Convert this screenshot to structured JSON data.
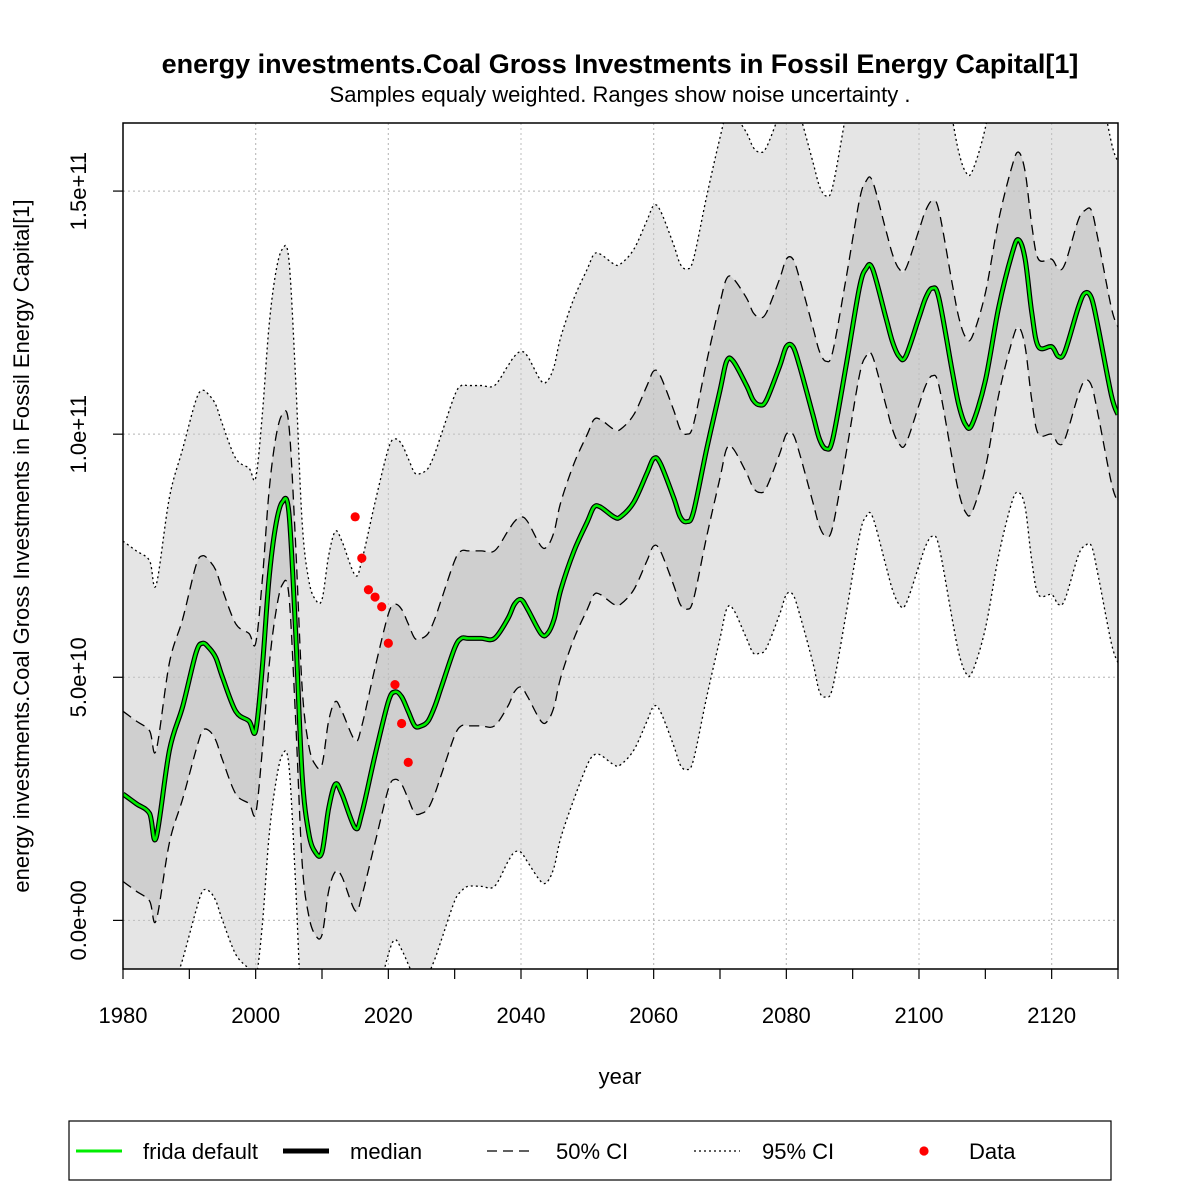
{
  "chart_data": {
    "type": "line",
    "title": "energy investments.Coal Gross Investments in Fossil Energy Capital[1]",
    "subtitle": "Samples equaly weighted. Ranges show  noise uncertainty .",
    "xlabel": "year",
    "ylabel": "energy investments.Coal Gross Investments in Fossil Energy Capital[1]",
    "xlim": [
      1980,
      2130
    ],
    "ylim": [
      -10000000000,
      164000000000
    ],
    "x_ticks": [
      1980,
      2000,
      2020,
      2040,
      2060,
      2080,
      2100,
      2120
    ],
    "x_tick_labels": [
      "1980",
      "2000",
      "2020",
      "2040",
      "2060",
      "2080",
      "2100",
      "2120"
    ],
    "y_ticks": [
      0,
      50000000000,
      100000000000,
      150000000000
    ],
    "y_tick_labels": [
      "0.0e+00",
      "5.0e+10",
      "1.0e+11",
      "1.5e+11"
    ],
    "grid": true,
    "legend_position": "bottom",
    "legend": [
      {
        "label": "frida default",
        "style": "line",
        "color": "#00ee00"
      },
      {
        "label": "median",
        "style": "line",
        "color": "#000000"
      },
      {
        "label": "50% CI",
        "style": "dashed",
        "color": "#000000"
      },
      {
        "label": "95% CI",
        "style": "dotted",
        "color": "#000000"
      },
      {
        "label": "Data",
        "style": "point",
        "color": "#ff0000"
      }
    ],
    "colors": {
      "band95": "#e5e5e5",
      "band50": "#cfcfcf",
      "frida_default": "#00ee00",
      "median": "#000000",
      "data": "#ff0000"
    },
    "x": [
      1980,
      1982,
      1984,
      1985,
      1987,
      1989,
      1991,
      1992,
      1993,
      1994,
      1995,
      1997,
      1999,
      2000,
      2001,
      2002,
      2003,
      2004,
      2005,
      2006,
      2007,
      2008,
      2009,
      2010,
      2011,
      2012,
      2013,
      2015,
      2016,
      2018,
      2020,
      2021,
      2022,
      2023,
      2024,
      2025,
      2026,
      2027,
      2028,
      2030,
      2031,
      2032,
      2034,
      2036,
      2038,
      2039,
      2040,
      2041,
      2043,
      2044,
      2045,
      2046,
      2048,
      2050,
      2051,
      2052,
      2054,
      2055,
      2057,
      2059,
      2060,
      2061,
      2063,
      2064,
      2065,
      2066,
      2068,
      2070,
      2071,
      2072,
      2074,
      2075,
      2076,
      2077,
      2079,
      2080,
      2081,
      2082,
      2084,
      2085,
      2086,
      2087,
      2089,
      2091,
      2092,
      2093,
      2095,
      2096,
      2097,
      2098,
      2100,
      2101,
      2102,
      2103,
      2105,
      2106,
      2107,
      2108,
      2110,
      2112,
      2114,
      2115,
      2116,
      2117,
      2118,
      2120,
      2121,
      2122,
      2124,
      2125,
      2126,
      2127,
      2129,
      2130
    ],
    "series": [
      {
        "name": "frida default",
        "values": [
          26000000000,
          24000000000,
          22000000000,
          17000000000,
          35000000000,
          44000000000,
          55000000000,
          57000000000,
          56000000000,
          54000000000,
          50000000000,
          43000000000,
          41000000000,
          39000000000,
          52000000000,
          70000000000,
          81000000000,
          86000000000,
          84000000000,
          60000000000,
          30000000000,
          18000000000,
          14000000000,
          14000000000,
          23000000000,
          28000000000,
          26000000000,
          19000000000,
          22000000000,
          34000000000,
          45000000000,
          47000000000,
          46000000000,
          43000000000,
          40000000000,
          40000000000,
          41000000000,
          44000000000,
          48000000000,
          56000000000,
          58000000000,
          58000000000,
          58000000000,
          58000000000,
          62000000000,
          65000000000,
          66000000000,
          64000000000,
          59000000000,
          59000000000,
          62000000000,
          68000000000,
          76000000000,
          82000000000,
          85000000000,
          85000000000,
          83000000000,
          83000000000,
          86000000000,
          92000000000,
          95000000000,
          94000000000,
          87000000000,
          83000000000,
          82000000000,
          84000000000,
          97000000000,
          109000000000,
          115000000000,
          115000000000,
          110000000000,
          107000000000,
          106000000000,
          107000000000,
          114000000000,
          118000000000,
          118000000000,
          114000000000,
          104000000000,
          99000000000,
          97000000000,
          99000000000,
          114000000000,
          130000000000,
          134000000000,
          134000000000,
          124000000000,
          119000000000,
          116000000000,
          116000000000,
          124000000000,
          128000000000,
          130000000000,
          128000000000,
          113000000000,
          106000000000,
          102000000000,
          102000000000,
          111000000000,
          126000000000,
          137000000000,
          140000000000,
          136000000000,
          125000000000,
          118000000000,
          118000000000,
          116000000000,
          117000000000,
          126000000000,
          129000000000,
          128000000000,
          122000000000,
          108000000000,
          104000000000
        ]
      },
      {
        "name": "median",
        "values": [
          26000000000,
          24000000000,
          22000000000,
          17000000000,
          35000000000,
          44000000000,
          55000000000,
          57000000000,
          56000000000,
          54000000000,
          50000000000,
          43000000000,
          41000000000,
          39000000000,
          52000000000,
          70000000000,
          81000000000,
          86000000000,
          84000000000,
          60000000000,
          30000000000,
          18000000000,
          14000000000,
          14000000000,
          23000000000,
          28000000000,
          26000000000,
          19000000000,
          22000000000,
          34000000000,
          45000000000,
          47000000000,
          46000000000,
          43000000000,
          40000000000,
          40000000000,
          41000000000,
          44000000000,
          48000000000,
          56000000000,
          58000000000,
          58000000000,
          58000000000,
          58000000000,
          62000000000,
          65000000000,
          66000000000,
          64000000000,
          59000000000,
          59000000000,
          62000000000,
          68000000000,
          76000000000,
          82000000000,
          85000000000,
          85000000000,
          83000000000,
          83000000000,
          86000000000,
          92000000000,
          95000000000,
          94000000000,
          87000000000,
          83000000000,
          82000000000,
          84000000000,
          97000000000,
          109000000000,
          115000000000,
          115000000000,
          110000000000,
          107000000000,
          106000000000,
          107000000000,
          114000000000,
          118000000000,
          118000000000,
          114000000000,
          104000000000,
          99000000000,
          97000000000,
          99000000000,
          114000000000,
          130000000000,
          134000000000,
          134000000000,
          124000000000,
          119000000000,
          116000000000,
          116000000000,
          124000000000,
          128000000000,
          130000000000,
          128000000000,
          113000000000,
          106000000000,
          102000000000,
          102000000000,
          111000000000,
          126000000000,
          137000000000,
          140000000000,
          136000000000,
          125000000000,
          118000000000,
          118000000000,
          116000000000,
          117000000000,
          126000000000,
          129000000000,
          128000000000,
          122000000000,
          108000000000,
          104000000000
        ]
      }
    ],
    "ci50": {
      "lower": [
        8000000000,
        6000000000,
        4000000000,
        0,
        16000000000,
        25000000000,
        35000000000,
        39000000000,
        39000000000,
        37000000000,
        33000000000,
        26000000000,
        24000000000,
        22000000000,
        35000000000,
        52000000000,
        63000000000,
        69000000000,
        67000000000,
        42000000000,
        12000000000,
        1000000000,
        -3000000000,
        -3000000000,
        6000000000,
        10000000000,
        9000000000,
        2000000000,
        5000000000,
        16000000000,
        27000000000,
        29000000000,
        28000000000,
        25000000000,
        22000000000,
        22000000000,
        23000000000,
        26000000000,
        30000000000,
        38000000000,
        40000000000,
        40000000000,
        40000000000,
        40000000000,
        44000000000,
        47000000000,
        48000000000,
        46000000000,
        41000000000,
        41000000000,
        44000000000,
        50000000000,
        58000000000,
        64000000000,
        67000000000,
        67000000000,
        65000000000,
        65000000000,
        68000000000,
        74000000000,
        77000000000,
        76000000000,
        69000000000,
        65000000000,
        64000000000,
        66000000000,
        79000000000,
        91000000000,
        97000000000,
        97000000000,
        92000000000,
        89000000000,
        88000000000,
        89000000000,
        96000000000,
        100000000000,
        100000000000,
        96000000000,
        86000000000,
        81000000000,
        79000000000,
        81000000000,
        96000000000,
        112000000000,
        116000000000,
        116000000000,
        106000000000,
        101000000000,
        98000000000,
        98000000000,
        106000000000,
        110000000000,
        112000000000,
        110000000000,
        95000000000,
        88000000000,
        84000000000,
        84000000000,
        93000000000,
        108000000000,
        119000000000,
        122000000000,
        118000000000,
        107000000000,
        100000000000,
        100000000000,
        98000000000,
        99000000000,
        108000000000,
        111000000000,
        110000000000,
        104000000000,
        90000000000,
        86000000000
      ],
      "upper": [
        43000000000,
        41000000000,
        39000000000,
        35000000000,
        53000000000,
        62000000000,
        73000000000,
        75000000000,
        74000000000,
        72000000000,
        68000000000,
        61000000000,
        59000000000,
        57000000000,
        70000000000,
        88000000000,
        99000000000,
        104000000000,
        102000000000,
        78000000000,
        48000000000,
        36000000000,
        32000000000,
        32000000000,
        41000000000,
        45000000000,
        43000000000,
        37000000000,
        40000000000,
        52000000000,
        63000000000,
        65000000000,
        64000000000,
        61000000000,
        58000000000,
        58000000000,
        59000000000,
        62000000000,
        66000000000,
        74000000000,
        76000000000,
        76000000000,
        76000000000,
        76000000000,
        80000000000,
        82000000000,
        83000000000,
        82000000000,
        77000000000,
        77000000000,
        80000000000,
        86000000000,
        94000000000,
        100000000000,
        103000000000,
        103000000000,
        101000000000,
        101000000000,
        104000000000,
        110000000000,
        113000000000,
        112000000000,
        105000000000,
        101000000000,
        100000000000,
        102000000000,
        115000000000,
        127000000000,
        132000000000,
        132000000000,
        128000000000,
        125000000000,
        124000000000,
        125000000000,
        132000000000,
        136000000000,
        136000000000,
        132000000000,
        122000000000,
        117000000000,
        115000000000,
        117000000000,
        132000000000,
        148000000000,
        152000000000,
        152000000000,
        142000000000,
        137000000000,
        134000000000,
        134000000000,
        142000000000,
        146000000000,
        148000000000,
        146000000000,
        131000000000,
        124000000000,
        120000000000,
        120000000000,
        129000000000,
        144000000000,
        155000000000,
        158000000000,
        154000000000,
        143000000000,
        136000000000,
        136000000000,
        134000000000,
        135000000000,
        144000000000,
        146000000000,
        146000000000,
        140000000000,
        126000000000,
        122000000000
      ]
    },
    "ci95": {
      "lower": [
        -26000000000,
        -28000000000,
        -30000000000,
        -35000000000,
        -17000000000,
        -8000000000,
        2000000000,
        6000000000,
        6000000000,
        4000000000,
        0,
        -7000000000,
        -10000000000,
        -12000000000,
        -1000000000,
        17000000000,
        28000000000,
        34000000000,
        32000000000,
        8000000000,
        -22000000000,
        -34000000000,
        -38000000000,
        -38000000000,
        -29000000000,
        -24000000000,
        -26000000000,
        -33000000000,
        -30000000000,
        -18000000000,
        -7000000000,
        -4000000000,
        -6000000000,
        -9000000000,
        -12000000000,
        -12000000000,
        -11000000000,
        -8000000000,
        -4000000000,
        4000000000,
        6000000000,
        7000000000,
        7000000000,
        7000000000,
        12000000000,
        14000000000,
        14000000000,
        12000000000,
        8000000000,
        8000000000,
        11000000000,
        17000000000,
        25000000000,
        32000000000,
        34000000000,
        34000000000,
        32000000000,
        32000000000,
        35000000000,
        41000000000,
        44000000000,
        43000000000,
        36000000000,
        32000000000,
        31000000000,
        33000000000,
        46000000000,
        58000000000,
        64000000000,
        64000000000,
        58000000000,
        55000000000,
        55000000000,
        56000000000,
        63000000000,
        67000000000,
        67000000000,
        63000000000,
        53000000000,
        47000000000,
        46000000000,
        48000000000,
        63000000000,
        79000000000,
        83000000000,
        83000000000,
        73000000000,
        68000000000,
        65000000000,
        65000000000,
        73000000000,
        77000000000,
        79000000000,
        77000000000,
        62000000000,
        55000000000,
        51000000000,
        51000000000,
        60000000000,
        75000000000,
        86000000000,
        88000000000,
        85000000000,
        74000000000,
        67000000000,
        67000000000,
        65000000000,
        66000000000,
        75000000000,
        77000000000,
        77000000000,
        71000000000,
        57000000000,
        53000000000
      ],
      "upper": [
        78000000000,
        76000000000,
        74000000000,
        69000000000,
        87000000000,
        97000000000,
        107000000000,
        109000000000,
        108000000000,
        106000000000,
        102000000000,
        95000000000,
        93000000000,
        91000000000,
        104000000000,
        122000000000,
        133000000000,
        138000000000,
        136000000000,
        112000000000,
        82000000000,
        70000000000,
        66000000000,
        66000000000,
        75000000000,
        80000000000,
        78000000000,
        71000000000,
        74000000000,
        86000000000,
        97000000000,
        99000000000,
        98000000000,
        95000000000,
        92000000000,
        92000000000,
        93000000000,
        96000000000,
        100000000000,
        108000000000,
        110000000000,
        110000000000,
        110000000000,
        110000000000,
        114000000000,
        116000000000,
        117000000000,
        116000000000,
        111000000000,
        111000000000,
        114000000000,
        120000000000,
        128000000000,
        134000000000,
        137000000000,
        137000000000,
        135000000000,
        135000000000,
        138000000000,
        144000000000,
        147000000000,
        146000000000,
        139000000000,
        135000000000,
        134000000000,
        136000000000,
        149000000000,
        161000000000,
        166000000000,
        166000000000,
        162000000000,
        159000000000,
        158000000000,
        159000000000,
        166000000000,
        170000000000,
        170000000000,
        166000000000,
        156000000000,
        151000000000,
        149000000000,
        151000000000,
        166000000000,
        182000000000,
        186000000000,
        186000000000,
        176000000000,
        171000000000,
        168000000000,
        168000000000,
        176000000000,
        180000000000,
        182000000000,
        180000000000,
        165000000000,
        158000000000,
        154000000000,
        154000000000,
        163000000000,
        178000000000,
        189000000000,
        192000000000,
        188000000000,
        177000000000,
        170000000000,
        170000000000,
        168000000000,
        169000000000,
        178000000000,
        180000000000,
        180000000000,
        174000000000,
        160000000000,
        156000000000
      ]
    },
    "data_points": {
      "x": [
        2015,
        2016,
        2017,
        2018,
        2019,
        2020,
        2021,
        2022,
        2023
      ],
      "y": [
        83000000000,
        74500000000,
        68000000000,
        66500000000,
        64500000000,
        57000000000,
        48500000000,
        40500000000,
        32500000000
      ]
    }
  }
}
